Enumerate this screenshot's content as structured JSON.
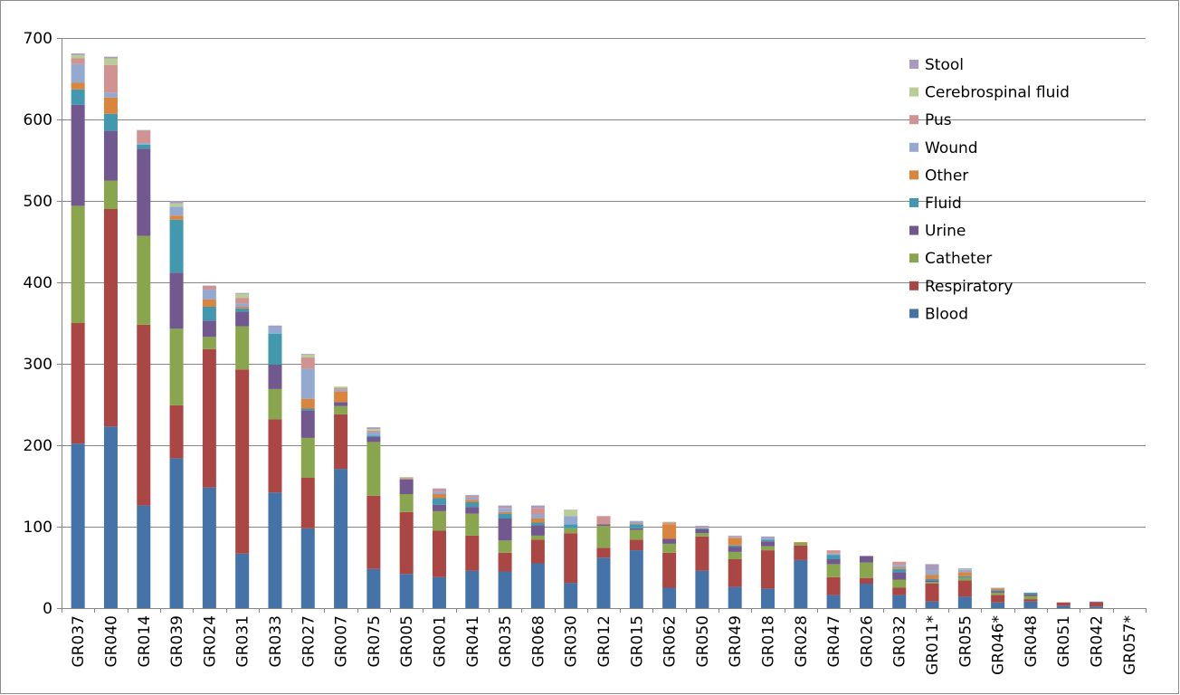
{
  "chart_data": {
    "type": "bar",
    "stacked": true,
    "title": "",
    "xlabel": "",
    "ylabel": "",
    "ylim": [
      0,
      700
    ],
    "yticks": [
      0,
      100,
      200,
      300,
      400,
      500,
      600,
      700
    ],
    "grid": true,
    "legend_position": "top-right",
    "categories": [
      "GR037",
      "GR040",
      "GR014",
      "GR039",
      "GR024",
      "GR031",
      "GR033",
      "GR027",
      "GR007",
      "GR075",
      "GR005",
      "GR001",
      "GR041",
      "GR035",
      "GR068",
      "GR030",
      "GR012",
      "GR015",
      "GR062",
      "GR050",
      "GR049",
      "GR018",
      "GR028",
      "GR047",
      "GR026",
      "GR032",
      "GR011*",
      "GR055",
      "GR046*",
      "GR048",
      "GR051",
      "GR042",
      "GR057*"
    ],
    "series": [
      {
        "name": "Blood",
        "color": "#4572A7",
        "values": [
          202,
          223,
          126,
          184,
          148,
          67,
          142,
          98,
          171,
          48,
          42,
          38,
          46,
          45,
          55,
          31,
          62,
          71,
          25,
          46,
          26,
          24,
          59,
          16,
          30,
          16,
          8,
          14,
          7,
          8,
          3,
          2,
          0
        ]
      },
      {
        "name": "Respiratory",
        "color": "#AA4643",
        "values": [
          148,
          267,
          222,
          65,
          170,
          226,
          90,
          62,
          67,
          90,
          76,
          57,
          43,
          23,
          29,
          61,
          12,
          13,
          43,
          42,
          34,
          47,
          18,
          22,
          7,
          9,
          22,
          20,
          9,
          3,
          4,
          5,
          0
        ]
      },
      {
        "name": "Catheter",
        "color": "#89A54E",
        "values": [
          144,
          35,
          109,
          94,
          15,
          53,
          37,
          49,
          10,
          66,
          22,
          24,
          27,
          15,
          5,
          6,
          27,
          12,
          11,
          4,
          9,
          5,
          3,
          16,
          19,
          10,
          2,
          3,
          3,
          4,
          0,
          0,
          0
        ]
      },
      {
        "name": "Urine",
        "color": "#71588F",
        "values": [
          124,
          61,
          107,
          69,
          20,
          18,
          30,
          34,
          5,
          6,
          18,
          8,
          8,
          27,
          13,
          0,
          2,
          2,
          6,
          5,
          6,
          6,
          0,
          6,
          8,
          9,
          2,
          0,
          2,
          2,
          0,
          1,
          0
        ]
      },
      {
        "name": "Fluid",
        "color": "#4198AF",
        "values": [
          19,
          21,
          5,
          65,
          17,
          4,
          38,
          2,
          0,
          2,
          0,
          8,
          6,
          6,
          3,
          5,
          0,
          5,
          0,
          1,
          2,
          2,
          0,
          5,
          0,
          4,
          2,
          2,
          1,
          2,
          0,
          0,
          0
        ]
      },
      {
        "name": "Other",
        "color": "#DB843D",
        "values": [
          8,
          20,
          0,
          5,
          9,
          2,
          0,
          12,
          13,
          0,
          1,
          5,
          3,
          2,
          5,
          0,
          0,
          1,
          18,
          0,
          9,
          0,
          1,
          0,
          0,
          2,
          5,
          5,
          2,
          0,
          0,
          0,
          0
        ]
      },
      {
        "name": "Wound",
        "color": "#93A9CF",
        "values": [
          23,
          6,
          2,
          11,
          12,
          4,
          8,
          37,
          2,
          4,
          1,
          3,
          3,
          4,
          5,
          10,
          0,
          2,
          0,
          1,
          1,
          2,
          0,
          2,
          0,
          3,
          5,
          3,
          1,
          0,
          0,
          0,
          0
        ]
      },
      {
        "name": "Pus",
        "color": "#D19392",
        "values": [
          7,
          34,
          15,
          0,
          4,
          7,
          0,
          14,
          2,
          2,
          0,
          3,
          2,
          1,
          8,
          0,
          10,
          0,
          2,
          1,
          1,
          0,
          0,
          4,
          0,
          4,
          0,
          0,
          0,
          0,
          0,
          0,
          0
        ]
      },
      {
        "name": "Cerebrospinal fluid",
        "color": "#B9CD96",
        "values": [
          4,
          8,
          0,
          4,
          0,
          5,
          0,
          3,
          2,
          2,
          1,
          0,
          0,
          0,
          0,
          8,
          0,
          0,
          1,
          0,
          0,
          0,
          0,
          0,
          0,
          0,
          0,
          1,
          0,
          0,
          0,
          0,
          0
        ]
      },
      {
        "name": "Stool",
        "color": "#A99BBD",
        "values": [
          2,
          2,
          1,
          3,
          1,
          1,
          2,
          1,
          0,
          2,
          0,
          1,
          1,
          3,
          3,
          0,
          0,
          1,
          0,
          1,
          1,
          2,
          0,
          0,
          0,
          0,
          8,
          1,
          0,
          0,
          0,
          0,
          0
        ]
      }
    ],
    "legend_order": [
      "Stool",
      "Cerebrospinal fluid",
      "Pus",
      "Wound",
      "Other",
      "Fluid",
      "Urine",
      "Catheter",
      "Respiratory",
      "Blood"
    ]
  }
}
